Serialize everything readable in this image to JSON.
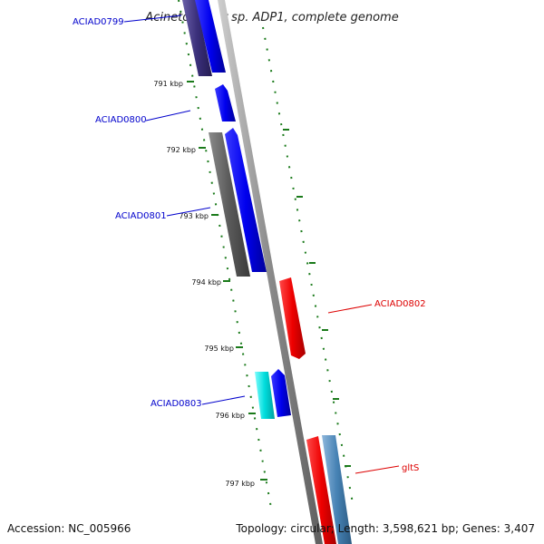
{
  "title": "Acinetobacter sp. ADP1, complete genome",
  "accession_label": "Accession: NC_005966",
  "summary_label": "Topology: circular; Length: 3,598,621 bp; Genes: 3,407",
  "ticks": [
    "791 kbp",
    "792 kbp",
    "793 kbp",
    "794 kbp",
    "795 kbp",
    "796 kbp",
    "797 kbp"
  ],
  "genes": [
    {
      "id": "ACIAD0799",
      "strand": "+",
      "color": "#0000ee"
    },
    {
      "id": "ACIAD0800",
      "strand": "+",
      "color": "#0000ee"
    },
    {
      "id": "ACIAD0801",
      "strand": "+",
      "color": "#0000ee"
    },
    {
      "id": "ACIAD0802",
      "strand": "-",
      "color": "#ee0000"
    },
    {
      "id": "ACIAD0803",
      "strand": "+",
      "color": "#0000ee"
    },
    {
      "id": "gltS",
      "strand": "-",
      "color": "#ee0000"
    }
  ],
  "feature_colors": {
    "cds_forward": "#0000ee",
    "cds_reverse": "#ee0000",
    "backbone": "#888888",
    "gray_feature": "#555555",
    "cyan_feature": "#00dddd",
    "steelblue_feature": "#4682b4",
    "purple_feature": "#3a2f7a",
    "tick_marks": "#1a7a1a"
  }
}
